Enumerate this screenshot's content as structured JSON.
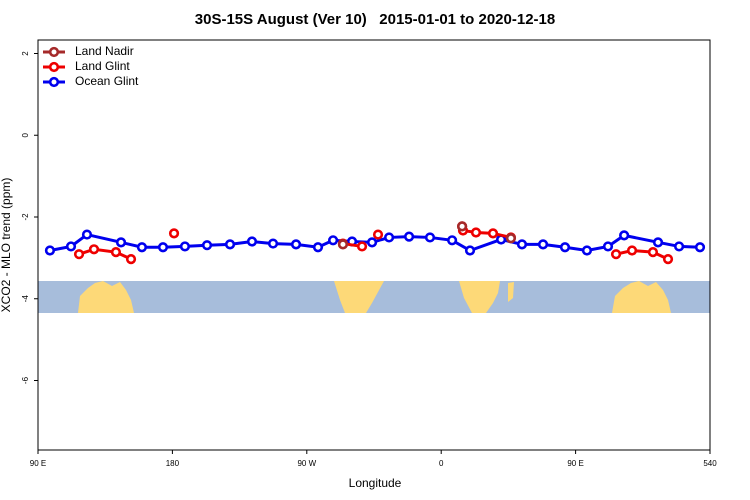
{
  "chart_data": {
    "type": "line",
    "title": "30S-15S August (Ver 10)   2015-01-01 to 2020-12-18",
    "x_label": "Longitude",
    "y_label": "XCO2 - MLO trend (ppm)",
    "xlim": [
      90,
      540
    ],
    "xticks": [
      {
        "value": 90,
        "label": "90 E"
      },
      180,
      {
        "value": 270,
        "label": "90 W"
      },
      {
        "value": 360,
        "label": "0"
      },
      {
        "value": 450,
        "label": "90 E"
      },
      540
    ],
    "ylim": [
      -7.7,
      2.33
    ],
    "yticks": [
      -6,
      -4,
      -2,
      0,
      2
    ],
    "legend": "top-left",
    "series": [
      {
        "name": "Land Nadir",
        "color": "#a52a2a",
        "x": [
          294.2,
          null,
          374.0,
          null,
          406.7
        ],
        "values": [
          -2.67,
          null,
          -2.23,
          null,
          -2.52
        ]
      },
      {
        "name": "Land Glint",
        "color": "#ee0000",
        "x": [
          117.5,
          127.5,
          142.2,
          152.3,
          null,
          181.1,
          null,
          294.2,
          307.0,
          null,
          317.7,
          null,
          374.0,
          374.6,
          383.3,
          394.7,
          406.7,
          null,
          477.1,
          487.8,
          501.8,
          511.9
        ],
        "values": [
          -2.91,
          -2.79,
          -2.86,
          -3.03,
          null,
          -2.4,
          null,
          -2.65,
          -2.72,
          null,
          -2.43,
          null,
          -2.23,
          -2.33,
          -2.38,
          -2.4,
          -2.5,
          null,
          -2.91,
          -2.82,
          -2.86,
          -3.03
        ]
      },
      {
        "name": "Ocean Glint",
        "color": "#0000ee",
        "x": [
          98.0,
          112.1,
          122.8,
          145.6,
          159.6,
          173.7,
          188.4,
          203.2,
          218.6,
          233.3,
          247.4,
          262.8,
          277.5,
          287.6,
          300.3,
          313.7,
          325.1,
          338.5,
          352.5,
          367.3,
          379.3,
          400.1,
          414.1,
          428.2,
          442.9,
          457.6,
          471.7,
          482.5,
          505.2,
          519.3,
          533.3
        ],
        "values": [
          -2.82,
          -2.72,
          -2.43,
          -2.62,
          -2.74,
          -2.74,
          -2.72,
          -2.69,
          -2.67,
          -2.6,
          -2.65,
          -2.67,
          -2.74,
          -2.57,
          -2.6,
          -2.62,
          -2.5,
          -2.48,
          -2.5,
          -2.57,
          -2.82,
          -2.55,
          -2.67,
          -2.67,
          -2.74,
          -2.82,
          -2.72,
          -2.45,
          -2.62,
          -2.72,
          -2.74
        ]
      }
    ]
  }
}
